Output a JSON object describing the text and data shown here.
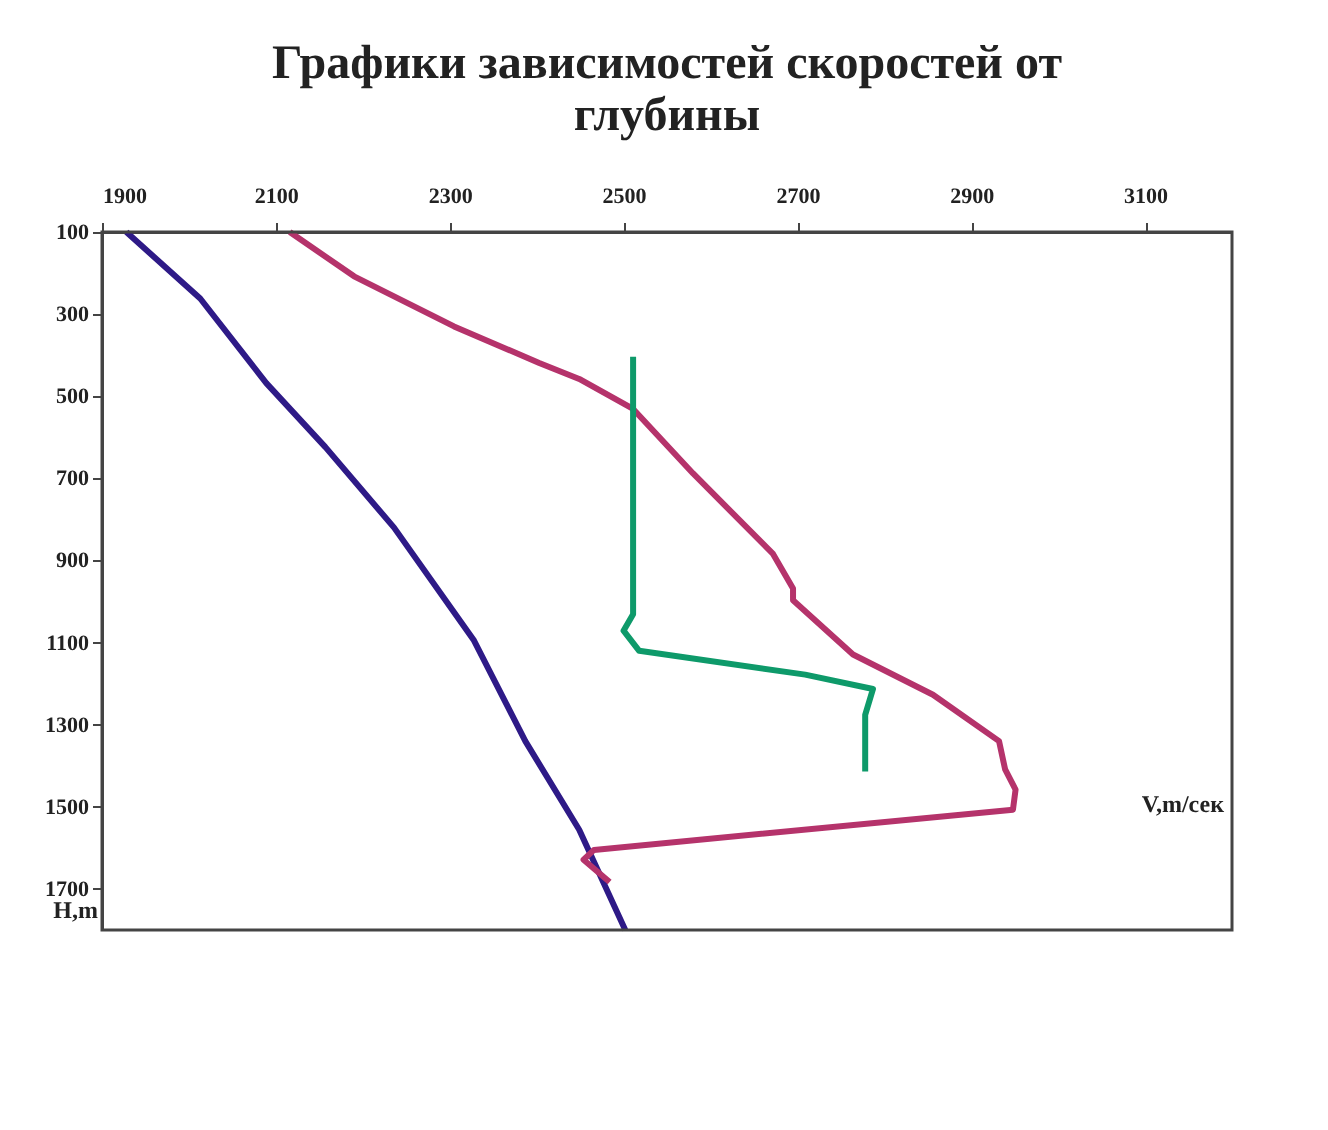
{
  "chart_data": {
    "type": "line",
    "title": "Графики зависимостей скоростей от глубины",
    "xlabel": "V,m/сек",
    "ylabel": "H,m",
    "xlim": [
      1900,
      3200
    ],
    "xticks": [
      1900,
      2100,
      2300,
      2500,
      2700,
      2900,
      3100
    ],
    "ylim": [
      1800,
      100
    ],
    "yticks": [
      100,
      300,
      500,
      700,
      900,
      1100,
      1300,
      1500,
      1700
    ],
    "grid": false,
    "legend": false,
    "marker": "none",
    "line_style": "solid",
    "series": [
      {
        "color": "#2e1a87",
        "x": [
          1928,
          2013,
          2089,
          2157,
          2236,
          2328,
          2387,
          2449,
          2502
        ],
        "values": [
          100,
          262,
          468,
          624,
          820,
          1095,
          1340,
          1556,
          1800
        ]
      },
      {
        "color": "#b5336b",
        "x": [
          2116,
          2190,
          2305,
          2403,
          2449,
          2511,
          2580,
          2672,
          2695,
          2695,
          2764,
          2856,
          2932,
          2939,
          2951,
          2948,
          2466,
          2454,
          2484
        ],
        "values": [
          100,
          208,
          330,
          419,
          458,
          531,
          688,
          884,
          968,
          997,
          1129,
          1227,
          1340,
          1409,
          1458,
          1507,
          1605,
          1629,
          1683
        ]
      },
      {
        "color": "#0e9a6a",
        "x": [
          2511,
          2511,
          2500,
          2518,
          2709,
          2787,
          2778,
          2778
        ],
        "values": [
          404,
          1031,
          1071,
          1120,
          1178,
          1213,
          1276,
          1414
        ]
      }
    ]
  }
}
